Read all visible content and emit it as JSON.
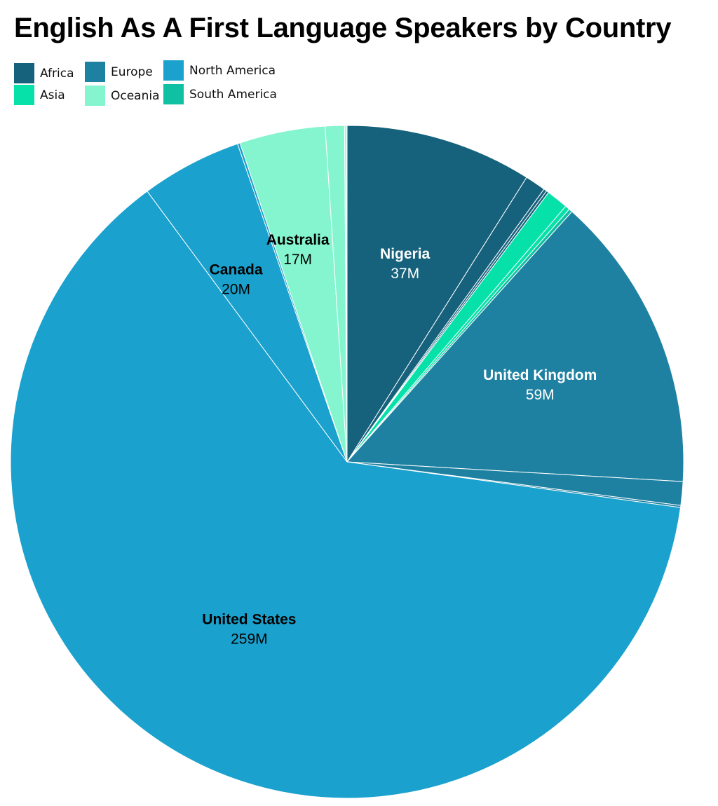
{
  "chart_data": {
    "type": "pie",
    "title": "English As A First Language Speakers by Country",
    "legend": {
      "placement": "top-left",
      "entries": [
        {
          "name": "Africa",
          "color": "#16617c"
        },
        {
          "name": "Europe",
          "color": "#1f81a2"
        },
        {
          "name": "North America",
          "color": "#1aa1cd"
        },
        {
          "name": "Asia",
          "color": "#05e1a8"
        },
        {
          "name": "Oceania",
          "color": "#85f5cf"
        },
        {
          "name": "South America",
          "color": "#0fc0a2"
        }
      ]
    },
    "slices": [
      {
        "region": "Africa",
        "value": 37,
        "label": "Nigeria",
        "value_label": "37M",
        "label_color": "#ffffff"
      },
      {
        "region": "Africa",
        "value": 4.1
      },
      {
        "region": "Africa",
        "value": 0.6
      },
      {
        "region": "Africa",
        "value": 0.5
      },
      {
        "region": "Asia",
        "value": 4.3
      },
      {
        "region": "Asia",
        "value": 0.9
      },
      {
        "region": "South America",
        "value": 0.7
      },
      {
        "region": "Europe",
        "value": 59,
        "label": "United Kingdom",
        "value_label": "59M",
        "label_color": "#ffffff"
      },
      {
        "region": "Europe",
        "value": 4.7
      },
      {
        "region": "Europe",
        "value": 0.4
      },
      {
        "region": "North America",
        "value": 259,
        "label": "United States",
        "value_label": "259M",
        "label_color": "#000000"
      },
      {
        "region": "North America",
        "value": 20,
        "label": "Canada",
        "value_label": "20M",
        "label_color": "#000000"
      },
      {
        "region": "North America",
        "value": 0.5
      },
      {
        "region": "Oceania",
        "value": 17,
        "label": "Australia",
        "value_label": "17M",
        "label_color": "#000000"
      },
      {
        "region": "Oceania",
        "value": 3.8
      },
      {
        "region": "Oceania",
        "value": 0.3
      },
      {
        "region": "Oceania",
        "value": 0.2
      }
    ]
  }
}
